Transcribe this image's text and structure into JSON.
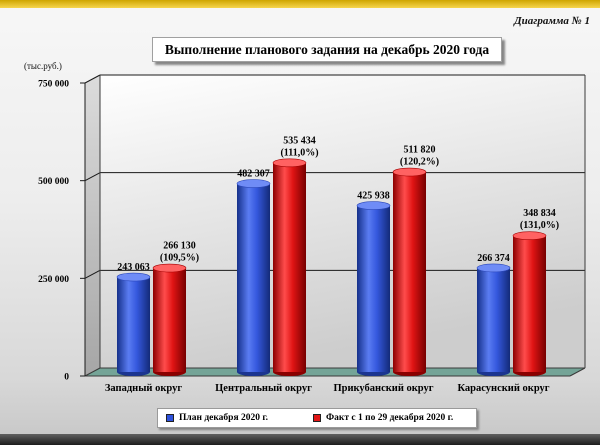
{
  "caption": "Диаграмма № 1",
  "colors": {
    "top_strip": "#f2c200",
    "floor": "#74a497",
    "bottom_strip": "#2b2b2b"
  },
  "chart_data": {
    "type": "bar",
    "title": "Выполнение планового задания на декабрь 2020 года",
    "xlabel": "",
    "ylabel": "(тыс.руб.)",
    "categories": [
      "Западный округ",
      "Центральный округ",
      "Прикубанский округ",
      "Карасунский округ"
    ],
    "ylim": [
      0,
      750000
    ],
    "yticks": [
      0,
      250000,
      500000,
      750000
    ],
    "ytick_labels": [
      "0",
      "250 000",
      "500 000",
      "750 000"
    ],
    "grid": true,
    "legend": "bottom",
    "series": [
      {
        "name": "План декабря 2020 г.",
        "color": "#2e52dc",
        "values": [
          243063,
          482307,
          425938,
          266374
        ],
        "labels": [
          "243 063",
          "482 307",
          "425 938",
          "266 374"
        ]
      },
      {
        "name": "Факт с 1 по 29 декабря 2020 г.",
        "color": "#e21616",
        "values": [
          266130,
          535434,
          511820,
          348834
        ],
        "labels": [
          "266 130",
          "535 434",
          "511 820",
          "348 834"
        ],
        "percent_labels": [
          "(109,5%)",
          "(111,0%)",
          "(120,2%)",
          "(131,0%)"
        ]
      }
    ]
  }
}
